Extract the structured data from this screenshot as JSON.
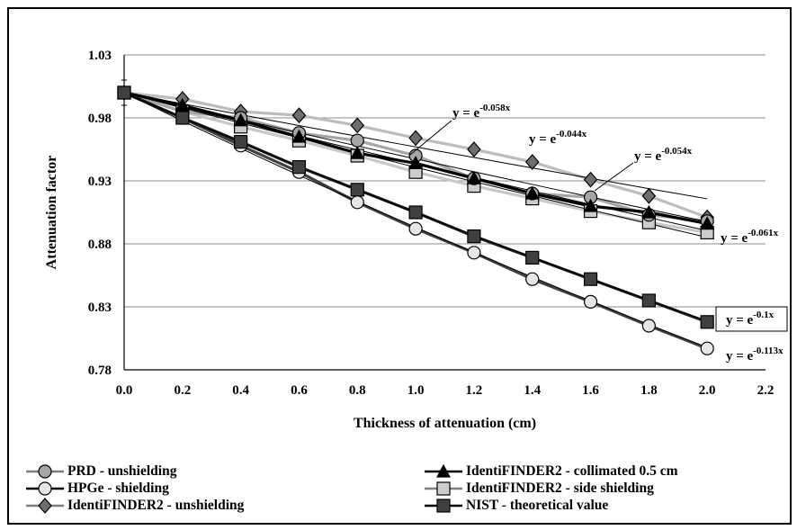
{
  "chart_data": {
    "type": "line",
    "xlabel": "Thickness of attenuation (cm)",
    "ylabel": "Attenuation factor",
    "xlim": [
      0.0,
      2.2
    ],
    "ylim": [
      0.78,
      1.03
    ],
    "x_ticks": [
      "0.0",
      "0.2",
      "0.4",
      "0.6",
      "0.8",
      "1.0",
      "1.2",
      "1.4",
      "1.6",
      "1.8",
      "2.0",
      "2.2"
    ],
    "y_ticks": [
      "0.78",
      "0.83",
      "0.88",
      "0.93",
      "0.98",
      "1.03"
    ],
    "grid": "horizontal",
    "legend_placement": "bottom",
    "x": [
      0.0,
      0.2,
      0.4,
      0.6,
      0.8,
      1.0,
      1.2,
      1.4,
      1.6,
      1.8,
      2.0
    ],
    "series": [
      {
        "name": "PRD - unshielding",
        "marker": "circle",
        "fill": "#a6a6a6",
        "line": "#a6a6a6",
        "values": [
          1.0,
          0.985,
          0.98,
          0.968,
          0.962,
          0.95,
          0.932,
          0.92,
          0.917,
          0.903,
          0.898
        ]
      },
      {
        "name": "IdentiFINDER2 - collimated 0.5 cm",
        "marker": "triangle",
        "fill": "#000000",
        "line": "#000000",
        "values": [
          1.0,
          0.99,
          0.978,
          0.965,
          0.952,
          0.944,
          0.932,
          0.92,
          0.91,
          0.905,
          0.896
        ]
      },
      {
        "name": "HPGe - shielding",
        "marker": "circle",
        "fill": "#e6e6e6",
        "line": "#404040",
        "values": [
          1.0,
          0.98,
          0.958,
          0.937,
          0.913,
          0.892,
          0.873,
          0.852,
          0.834,
          0.815,
          0.797
        ]
      },
      {
        "name": "IdentiFINDER2 - side shielding",
        "marker": "square",
        "fill": "#cccccc",
        "line": "#c8c8c8",
        "values": [
          1.0,
          0.985,
          0.973,
          0.962,
          0.95,
          0.937,
          0.926,
          0.916,
          0.906,
          0.897,
          0.889
        ]
      },
      {
        "name": "IdentiFINDER2 - unshielding",
        "marker": "diamond",
        "fill": "#6e6e6e",
        "line": "#bdbdbd",
        "values": [
          1.0,
          0.995,
          0.985,
          0.982,
          0.974,
          0.964,
          0.955,
          0.945,
          0.931,
          0.918,
          0.901
        ]
      },
      {
        "name": "NIST - theoretical value",
        "marker": "square",
        "fill": "#404040",
        "line": "#1a1a1a",
        "values": [
          1.0,
          0.98,
          0.961,
          0.941,
          0.923,
          0.905,
          0.886,
          0.869,
          0.852,
          0.835,
          0.818
        ]
      }
    ],
    "fits": [
      {
        "k": 0.044,
        "x_range": [
          0.0,
          2.0
        ]
      },
      {
        "k": 0.058,
        "x_range": [
          0.0,
          2.0
        ]
      },
      {
        "k": 0.054,
        "x_range": [
          0.0,
          2.0
        ]
      },
      {
        "k": 0.061,
        "x_range": [
          0.0,
          2.0
        ]
      },
      {
        "k": 0.1,
        "x_range": [
          0.0,
          2.0
        ]
      },
      {
        "k": 0.113,
        "x_range": [
          0.0,
          2.0
        ]
      }
    ],
    "annotations": [
      {
        "base": "y = e",
        "exp": "-0.058x",
        "boxed": false
      },
      {
        "base": "y = e",
        "exp": "-0.044x",
        "boxed": false
      },
      {
        "base": "y = e",
        "exp": "-0.054x",
        "boxed": false
      },
      {
        "base": "y = e",
        "exp": "-0.061x",
        "boxed": false
      },
      {
        "base": "y = e",
        "exp": "-0.1x",
        "boxed": true
      },
      {
        "base": "y = e",
        "exp": "-0.113x",
        "boxed": false
      }
    ]
  }
}
